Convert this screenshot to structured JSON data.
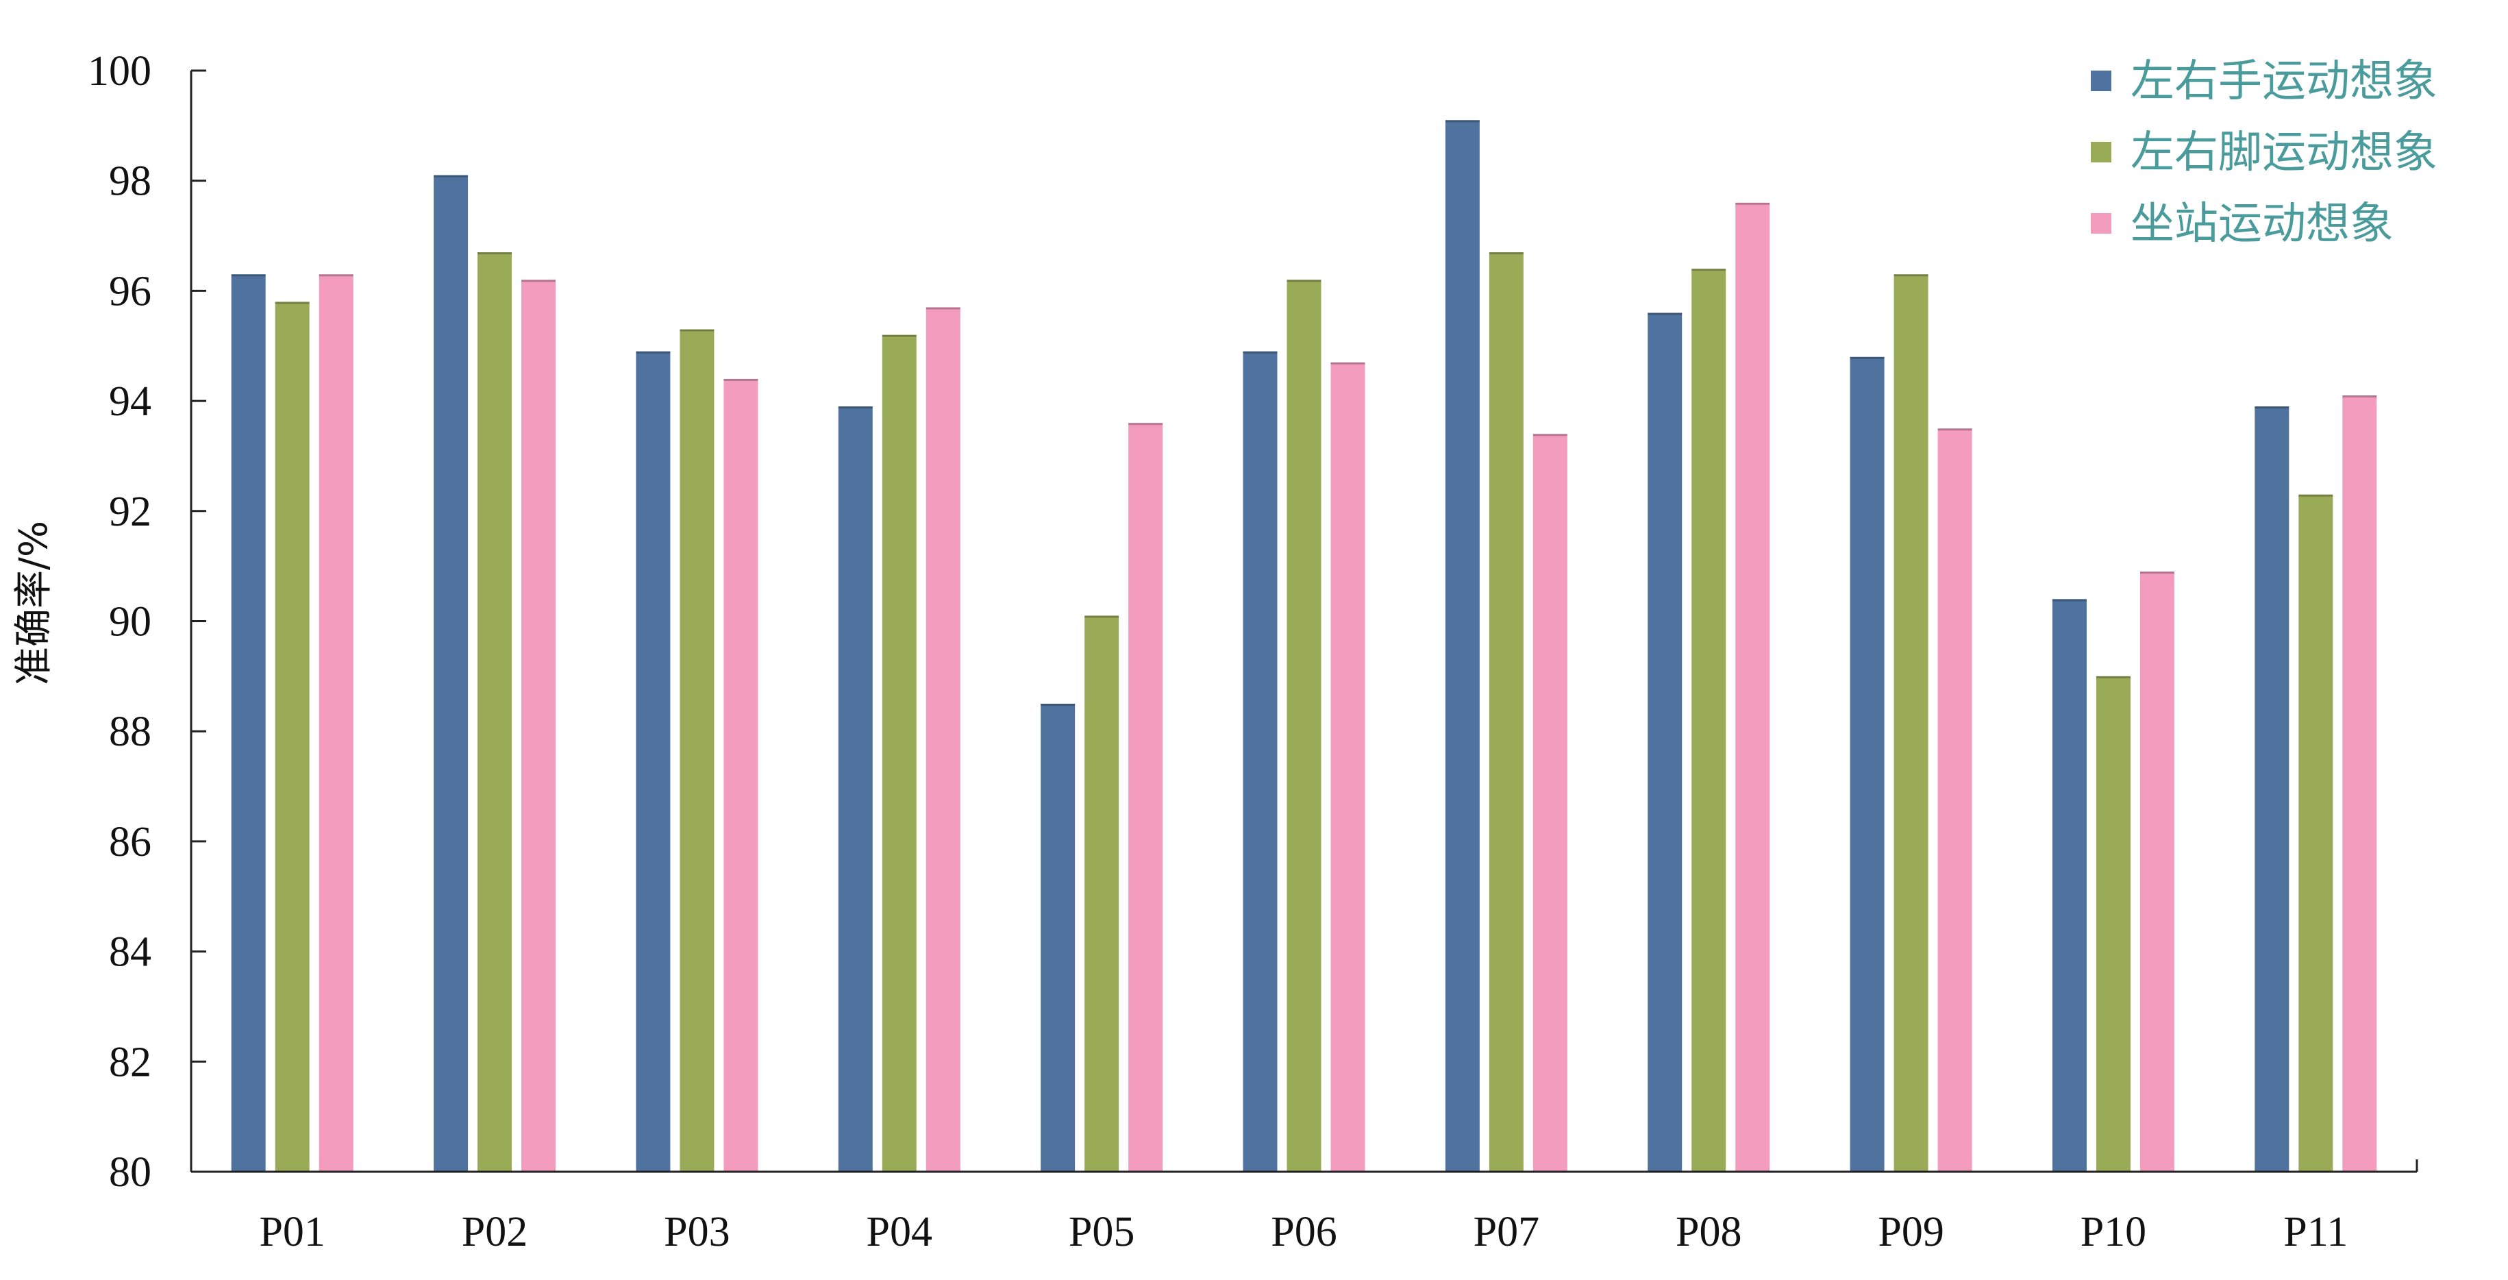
{
  "chart_data": {
    "type": "bar",
    "title": "",
    "xlabel": "",
    "ylabel": "准确率/%",
    "ylim": [
      80,
      100
    ],
    "yticks": [
      "80",
      "82",
      "84",
      "86",
      "88",
      "90",
      "92",
      "94",
      "96",
      "98",
      "100"
    ],
    "grid": false,
    "legend_position": "top-right",
    "categories": [
      "P01",
      "P02",
      "P03",
      "P04",
      "P05",
      "P06",
      "P07",
      "P08",
      "P09",
      "P10",
      "P11"
    ],
    "series": [
      {
        "name": "左右手运动想象",
        "color": "#4f739e",
        "values": [
          96.3,
          98.1,
          94.9,
          93.9,
          88.5,
          94.9,
          99.1,
          95.6,
          94.8,
          90.4,
          93.9
        ]
      },
      {
        "name": "左右脚运动想象",
        "color": "#9aab58",
        "values": [
          95.8,
          96.7,
          95.3,
          95.2,
          90.1,
          96.2,
          96.7,
          96.4,
          96.3,
          89.0,
          92.3
        ]
      },
      {
        "name": "坐站运动想象",
        "color": "#f39cbd",
        "values": [
          96.3,
          96.2,
          94.4,
          95.7,
          93.6,
          94.7,
          93.4,
          97.6,
          93.5,
          90.9,
          94.1
        ]
      }
    ]
  }
}
